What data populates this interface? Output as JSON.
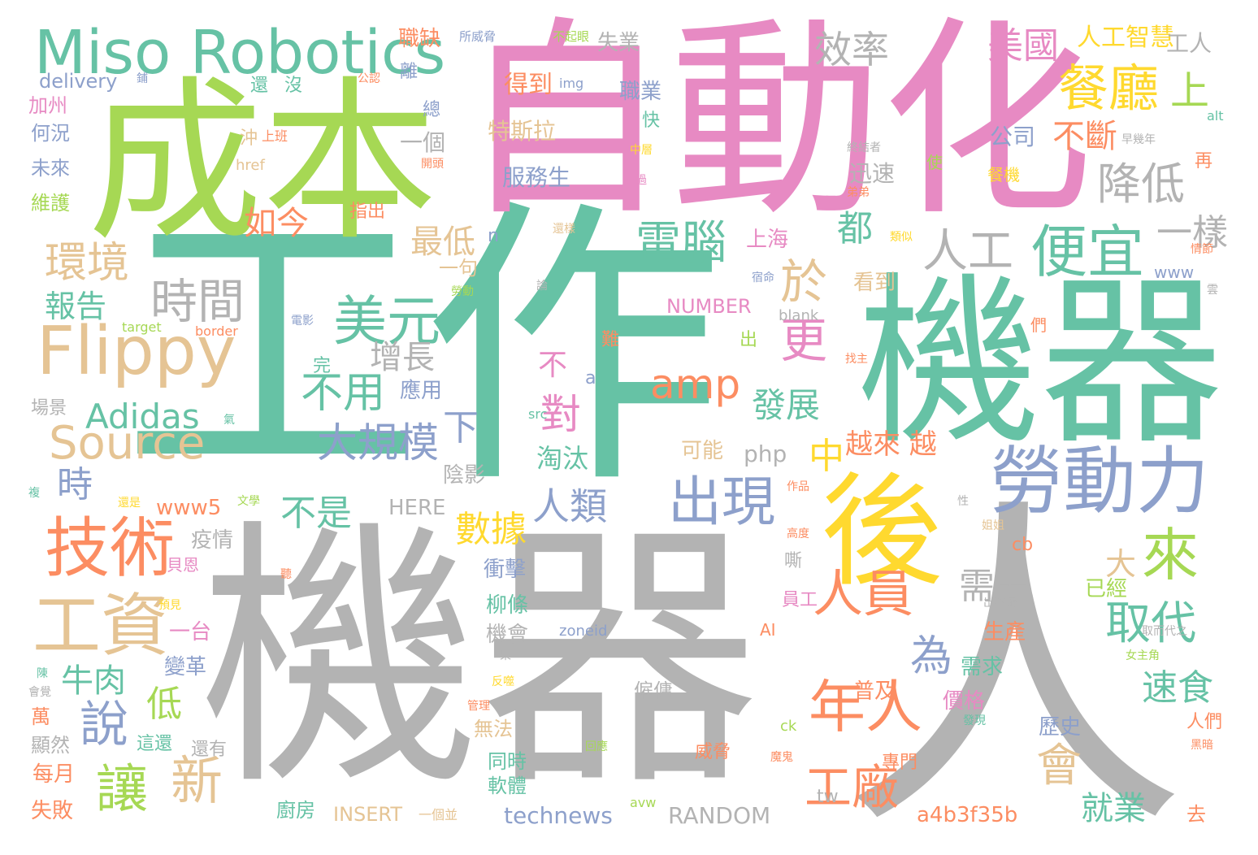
{
  "palette": {
    "gray": "#b3b3b3",
    "teal": "#66c2a5",
    "orange": "#fc8d62",
    "blue": "#8da0cb",
    "pink": "#e78ac3",
    "green": "#a6d854",
    "yellow": "#ffd92f",
    "tan": "#e5c494"
  },
  "words": {
    "w001": {
      "text": "機器",
      "color": "gray"
    },
    "w002": {
      "text": "工作",
      "color": "teal"
    },
    "w003": {
      "text": "自動化",
      "color": "pink"
    },
    "w004": {
      "text": "機器",
      "color": "teal"
    },
    "w005": {
      "text": "人",
      "color": "gray"
    },
    "w006": {
      "text": "成本",
      "color": "green"
    },
    "w007": {
      "text": "後",
      "color": "yellow"
    },
    "w008": {
      "text": "Miso Robotics",
      "color": "teal"
    },
    "w009": {
      "text": "Flippy",
      "color": "tan"
    },
    "w010": {
      "text": "勞動力",
      "color": "blue"
    },
    "w011": {
      "text": "技術",
      "color": "orange"
    },
    "w012": {
      "text": "工資",
      "color": "tan"
    },
    "w013": {
      "text": "Source",
      "color": "tan"
    },
    "w014": {
      "text": "餐廳",
      "color": "yellow"
    },
    "w015": {
      "text": "上",
      "color": "green"
    },
    "w016": {
      "text": "便宜",
      "color": "teal"
    },
    "w017": {
      "text": "出現",
      "color": "blue"
    },
    "w018": {
      "text": "美元",
      "color": "teal"
    },
    "w019": {
      "text": "時間",
      "color": "gray"
    },
    "w020": {
      "text": "人工",
      "color": "gray"
    },
    "w021": {
      "text": "電腦",
      "color": "teal"
    },
    "w022": {
      "text": "降低",
      "color": "gray"
    },
    "w023": {
      "text": "一樣",
      "color": "gray"
    },
    "w024": {
      "text": "效率",
      "color": "gray"
    },
    "w025": {
      "text": "美國",
      "color": "pink"
    },
    "w026": {
      "text": "環境",
      "color": "tan"
    },
    "w027": {
      "text": "Adidas",
      "color": "teal"
    },
    "w028": {
      "text": "amp",
      "color": "orange"
    },
    "w029": {
      "text": "年人",
      "color": "orange"
    },
    "w030": {
      "text": "來",
      "color": "green"
    },
    "w031": {
      "text": "取代",
      "color": "teal"
    },
    "w032": {
      "text": "人員",
      "color": "orange"
    },
    "w033": {
      "text": "工廠",
      "color": "orange"
    },
    "w034": {
      "text": "讓",
      "color": "green"
    },
    "w035": {
      "text": "新",
      "color": "tan"
    },
    "w036": {
      "text": "說",
      "color": "blue"
    },
    "w037": {
      "text": "大規模",
      "color": "blue"
    },
    "w038": {
      "text": "不用",
      "color": "teal"
    },
    "w039": {
      "text": "人類",
      "color": "blue"
    },
    "w040": {
      "text": "數據",
      "color": "yellow"
    },
    "w041": {
      "text": "不斷",
      "color": "orange"
    },
    "w042": {
      "text": "如今",
      "color": "orange"
    },
    "w043": {
      "text": "報告",
      "color": "teal"
    },
    "w044": {
      "text": "最低",
      "color": "tan"
    },
    "w045": {
      "text": "增長",
      "color": "gray"
    },
    "w046": {
      "text": "發展",
      "color": "teal"
    },
    "w047": {
      "text": "需要",
      "color": "gray"
    },
    "w048": {
      "text": "速食",
      "color": "teal"
    },
    "w049": {
      "text": "就業",
      "color": "teal"
    },
    "w050": {
      "text": "會",
      "color": "tan"
    },
    "w051": {
      "text": "牛肉",
      "color": "teal"
    },
    "w052": {
      "text": "低",
      "color": "green"
    },
    "w053": {
      "text": "為",
      "color": "blue"
    },
    "w054": {
      "text": "更",
      "color": "pink"
    },
    "w055": {
      "text": "於",
      "color": "tan"
    },
    "w056": {
      "text": "都",
      "color": "teal"
    },
    "w057": {
      "text": "中",
      "color": "yellow"
    },
    "w058": {
      "text": "對",
      "color": "pink"
    },
    "w059": {
      "text": "不",
      "color": "pink"
    },
    "w060": {
      "text": "下",
      "color": "blue"
    },
    "w061": {
      "text": "時",
      "color": "blue"
    },
    "w062": {
      "text": "不是",
      "color": "teal"
    },
    "w063": {
      "text": "大",
      "color": "tan"
    },
    "w064": {
      "text": "越來 越",
      "color": "orange"
    },
    "w065": {
      "text": "淘汰",
      "color": "teal"
    },
    "w066": {
      "text": "人工智慧",
      "color": "yellow"
    },
    "w067": {
      "text": "工人",
      "color": "gray"
    },
    "w068": {
      "text": "職缺",
      "color": "orange"
    },
    "w069": {
      "text": "失業",
      "color": "gray"
    },
    "w070": {
      "text": "得到",
      "color": "orange"
    },
    "w071": {
      "text": "特斯拉",
      "color": "tan"
    },
    "w072": {
      "text": "服務生",
      "color": "blue"
    },
    "w073": {
      "text": "職業",
      "color": "blue"
    },
    "w074": {
      "text": "公司",
      "color": "blue"
    },
    "w075": {
      "text": "迅速",
      "color": "gray"
    },
    "w076": {
      "text": "一個",
      "color": "gray"
    },
    "w077": {
      "text": "上海",
      "color": "pink"
    },
    "w078": {
      "text": "看到",
      "color": "tan"
    },
    "w079": {
      "text": "一句",
      "color": "tan"
    },
    "w080": {
      "text": "NUMBER",
      "color": "pink"
    },
    "w081": {
      "text": "www5",
      "color": "orange"
    },
    "w082": {
      "text": "HERE",
      "color": "gray"
    },
    "w083": {
      "text": "php",
      "color": "gray"
    },
    "w084": {
      "text": "可能",
      "color": "tan"
    },
    "w085": {
      "text": "應用",
      "color": "blue"
    },
    "w086": {
      "text": "陰影",
      "color": "gray"
    },
    "w087": {
      "text": "疫情",
      "color": "gray"
    },
    "w088": {
      "text": "衝擊",
      "color": "blue"
    },
    "w089": {
      "text": "柳條",
      "color": "teal"
    },
    "w090": {
      "text": "機會",
      "color": "gray"
    },
    "w091": {
      "text": "一台",
      "color": "pink"
    },
    "w092": {
      "text": "變革",
      "color": "blue"
    },
    "w093": {
      "text": "生產",
      "color": "orange"
    },
    "w094": {
      "text": "需求",
      "color": "teal"
    },
    "w095": {
      "text": "價格",
      "color": "pink"
    },
    "w096": {
      "text": "普及",
      "color": "orange"
    },
    "w097": {
      "text": "已經",
      "color": "green"
    },
    "w098": {
      "text": "員工",
      "color": "pink"
    },
    "w099": {
      "text": "歷史",
      "color": "blue"
    },
    "w100": {
      "text": "人們",
      "color": "orange"
    },
    "w101": {
      "text": "專門",
      "color": "orange"
    },
    "w102": {
      "text": "同時",
      "color": "teal"
    },
    "w103": {
      "text": "軟體",
      "color": "teal"
    },
    "w104": {
      "text": "無法",
      "color": "tan"
    },
    "w105": {
      "text": "technews",
      "color": "blue"
    },
    "w106": {
      "text": "RANDOM",
      "color": "gray"
    },
    "w107": {
      "text": "a4b3f35b",
      "color": "orange"
    },
    "w108": {
      "text": "INSERT",
      "color": "tan"
    },
    "w109": {
      "text": "廚房",
      "color": "teal"
    },
    "w110": {
      "text": "失敗",
      "color": "orange"
    },
    "w111": {
      "text": "每月",
      "color": "orange"
    },
    "w112": {
      "text": "顯然",
      "color": "gray"
    },
    "w113": {
      "text": "萬",
      "color": "orange"
    },
    "w114": {
      "text": "這還",
      "color": "teal"
    },
    "w115": {
      "text": "還有",
      "color": "gray"
    },
    "w116": {
      "text": "僱傭",
      "color": "gray"
    },
    "w117": {
      "text": "威脅",
      "color": "orange"
    },
    "w118": {
      "text": "tw",
      "color": "gray"
    },
    "w119": {
      "text": "去",
      "color": "orange"
    },
    "w120": {
      "text": "delivery",
      "color": "blue"
    },
    "w121": {
      "text": "加州",
      "color": "pink"
    },
    "w122": {
      "text": "何況",
      "color": "blue"
    },
    "w123": {
      "text": "未來",
      "color": "blue"
    },
    "w124": {
      "text": "維護",
      "color": "green"
    },
    "w125": {
      "text": "場景",
      "color": "gray"
    },
    "w126": {
      "text": "還",
      "color": "teal"
    },
    "w127": {
      "text": "沒",
      "color": "teal"
    },
    "w128": {
      "text": "離",
      "color": "blue"
    },
    "w129": {
      "text": "總",
      "color": "blue"
    },
    "w130": {
      "text": "快",
      "color": "teal"
    },
    "w131": {
      "text": "沖",
      "color": "tan"
    },
    "w132": {
      "text": "上班",
      "color": "orange"
    },
    "w133": {
      "text": "href",
      "color": "tan"
    },
    "w134": {
      "text": "指出",
      "color": "orange"
    },
    "w135": {
      "text": "n",
      "color": "blue"
    },
    "w136": {
      "text": "www",
      "color": "blue"
    },
    "w137": {
      "text": "blank",
      "color": "gray"
    },
    "w138": {
      "text": "出",
      "color": "green"
    },
    "w139": {
      "text": "難",
      "color": "orange"
    },
    "w140": {
      "text": "完",
      "color": "teal"
    },
    "w141": {
      "text": "a",
      "color": "blue"
    },
    "w142": {
      "text": "cb",
      "color": "orange"
    },
    "w143": {
      "text": "嘶",
      "color": "gray"
    },
    "w144": {
      "text": "AI",
      "color": "orange"
    },
    "w145": {
      "text": "zoneid",
      "color": "blue"
    },
    "w146": {
      "text": "ck",
      "color": "green"
    },
    "w147": {
      "text": "avw",
      "color": "green"
    },
    "w148": {
      "text": "src",
      "color": "teal"
    },
    "w149": {
      "text": "target",
      "color": "green"
    },
    "w150": {
      "text": "border",
      "color": "orange"
    },
    "w151": {
      "text": "img",
      "color": "blue"
    },
    "w152": {
      "text": "alt",
      "color": "teal"
    },
    "w153": {
      "text": "再",
      "color": "orange"
    },
    "w154": {
      "text": "使",
      "color": "green"
    },
    "w155": {
      "text": "餐機",
      "color": "yellow"
    },
    "w156": {
      "text": "們",
      "color": "orange"
    },
    "w157": {
      "text": "一個並",
      "color": "tan"
    },
    "w158": {
      "text": "所威脅",
      "color": "blue"
    },
    "w159": {
      "text": "不起眼",
      "color": "green"
    },
    "w160": {
      "text": "鋪",
      "color": "blue"
    },
    "w161": {
      "text": "公認",
      "color": "orange"
    },
    "w162": {
      "text": "開頭",
      "color": "orange"
    },
    "w163": {
      "text": "中層",
      "color": "yellow"
    },
    "w164": {
      "text": "有過",
      "color": "pink"
    },
    "w165": {
      "text": "終結者",
      "color": "gray"
    },
    "w166": {
      "text": "早幾年",
      "color": "gray"
    },
    "w167": {
      "text": "弟弟",
      "color": "orange"
    },
    "w168": {
      "text": "還樣",
      "color": "tan"
    },
    "w169": {
      "text": "類似",
      "color": "yellow"
    },
    "w170": {
      "text": "情節",
      "color": "orange"
    },
    "w171": {
      "text": "宿命",
      "color": "blue"
    },
    "w172": {
      "text": "勞動",
      "color": "green"
    },
    "w173": {
      "text": "論",
      "color": "gray"
    },
    "w174": {
      "text": "電影",
      "color": "blue"
    },
    "w175": {
      "text": "雲",
      "color": "gray"
    },
    "w176": {
      "text": "找主",
      "color": "orange"
    },
    "w177": {
      "text": "氣",
      "color": "teal"
    },
    "w178": {
      "text": "複",
      "color": "teal"
    },
    "w179": {
      "text": "還是",
      "color": "yellow"
    },
    "w180": {
      "text": "文學",
      "color": "green"
    },
    "w181": {
      "text": "作品",
      "color": "orange"
    },
    "w182": {
      "text": "性",
      "color": "gray"
    },
    "w183": {
      "text": "姐姐",
      "color": "tan"
    },
    "w184": {
      "text": "高度",
      "color": "orange"
    },
    "w185": {
      "text": "貝恩",
      "color": "pink"
    },
    "w186": {
      "text": "預見",
      "color": "yellow"
    },
    "w187": {
      "text": "陳",
      "color": "teal"
    },
    "w188": {
      "text": "會覺",
      "color": "gray"
    },
    "w189": {
      "text": "聽",
      "color": "orange"
    },
    "w190": {
      "text": "取而代之",
      "color": "gray"
    },
    "w191": {
      "text": "出不窮",
      "color": "gray"
    },
    "w192": {
      "text": "女主角",
      "color": "green"
    },
    "w193": {
      "text": "果",
      "color": "gray"
    },
    "w194": {
      "text": "反噬",
      "color": "yellow"
    },
    "w195": {
      "text": "管理",
      "color": "orange"
    },
    "w196": {
      "text": "發現",
      "color": "teal"
    },
    "w197": {
      "text": "回應",
      "color": "green"
    },
    "w198": {
      "text": "魔鬼",
      "color": "orange"
    },
    "w199": {
      "text": "黑暗",
      "color": "orange"
    }
  }
}
